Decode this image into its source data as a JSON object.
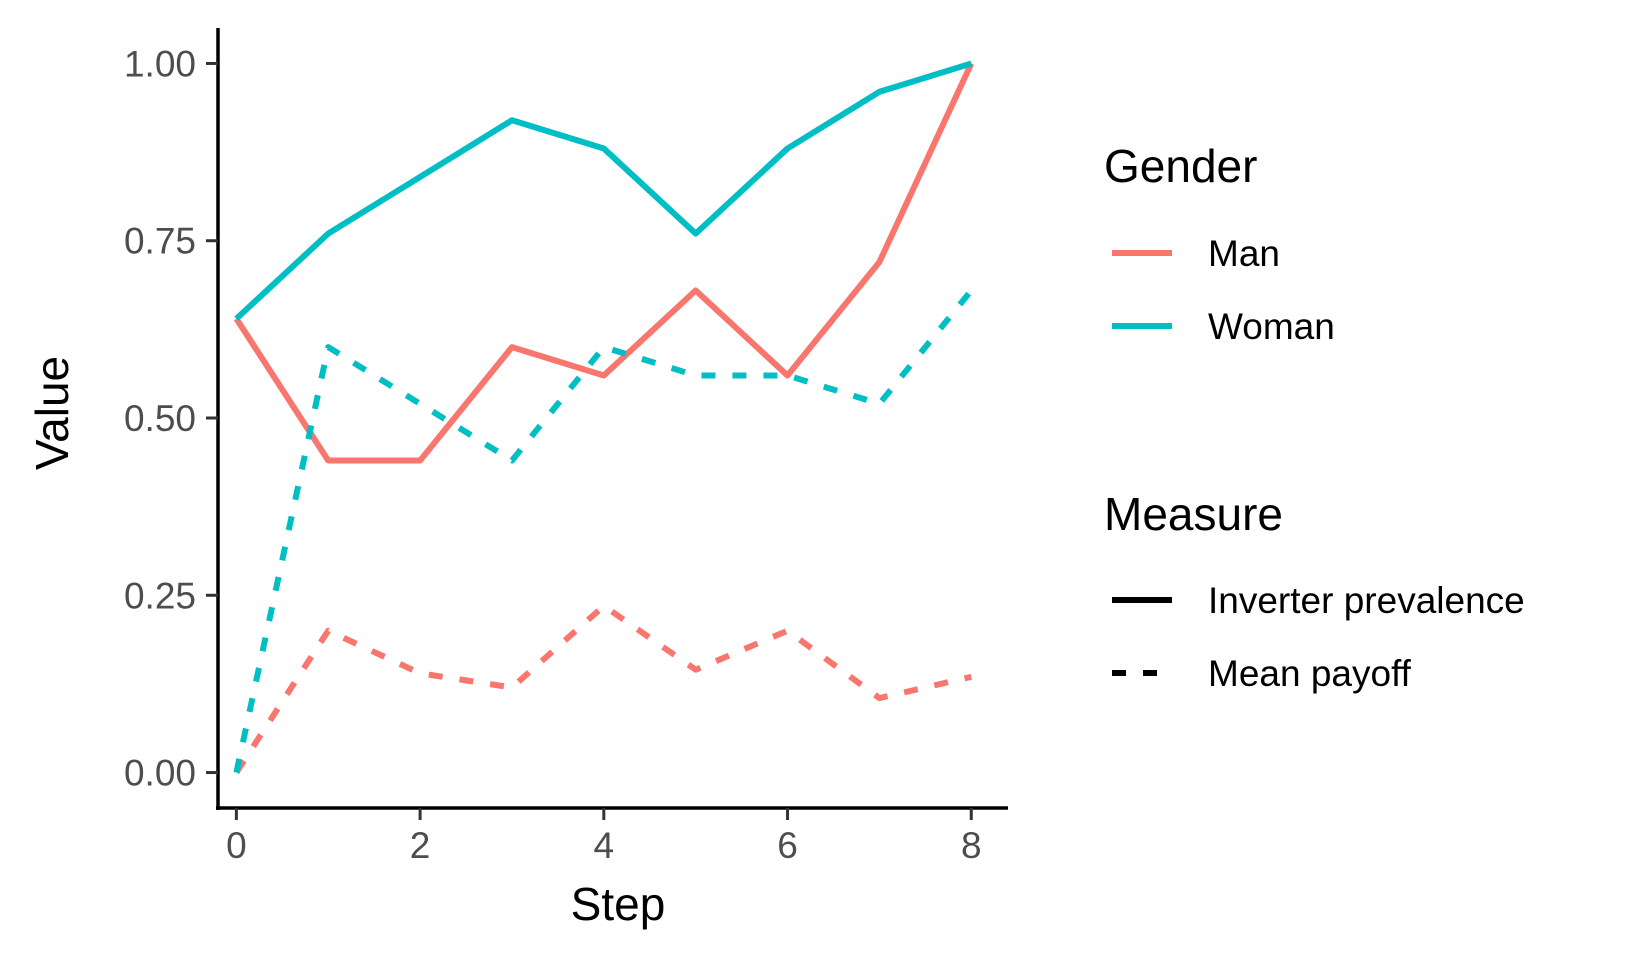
{
  "chart_data": {
    "type": "line",
    "xlabel": "Step",
    "ylabel": "Value",
    "xlim": [
      -0.2,
      8.4
    ],
    "ylim": [
      -0.05,
      1.05
    ],
    "x_ticks": [
      0,
      2,
      4,
      6,
      8
    ],
    "y_ticks": [
      "0.00",
      "0.25",
      "0.50",
      "0.75",
      "1.00"
    ],
    "grid": false,
    "legend_position": "right",
    "x": [
      0,
      1,
      2,
      3,
      4,
      5,
      6,
      7,
      8
    ],
    "legends": [
      {
        "title": "Gender",
        "entries": [
          {
            "label": "Man",
            "color": "#F8766D"
          },
          {
            "label": "Woman",
            "color": "#00BFC4"
          }
        ]
      },
      {
        "title": "Measure",
        "entries": [
          {
            "label": "Inverter prevalence",
            "dash": "solid"
          },
          {
            "label": "Mean payoff",
            "dash": "dashed"
          }
        ]
      }
    ],
    "series": [
      {
        "gender": "Man",
        "measure": "Inverter prevalence",
        "color": "#F8766D",
        "dash": "solid",
        "values": [
          0.64,
          0.44,
          0.44,
          0.6,
          0.56,
          0.68,
          0.56,
          0.72,
          1.0
        ]
      },
      {
        "gender": "Woman",
        "measure": "Inverter prevalence",
        "color": "#00BFC4",
        "dash": "solid",
        "values": [
          0.64,
          0.76,
          0.84,
          0.92,
          0.88,
          0.76,
          0.88,
          0.96,
          1.0
        ]
      },
      {
        "gender": "Man",
        "measure": "Mean payoff",
        "color": "#F8766D",
        "dash": "dashed",
        "values": [
          0.0,
          0.2,
          0.14,
          0.12,
          0.235,
          0.145,
          0.2,
          0.105,
          0.135
        ]
      },
      {
        "gender": "Woman",
        "measure": "Mean payoff",
        "color": "#00BFC4",
        "dash": "dashed",
        "values": [
          0.0,
          0.6,
          0.52,
          0.44,
          0.6,
          0.56,
          0.56,
          0.52,
          0.68
        ]
      }
    ]
  }
}
